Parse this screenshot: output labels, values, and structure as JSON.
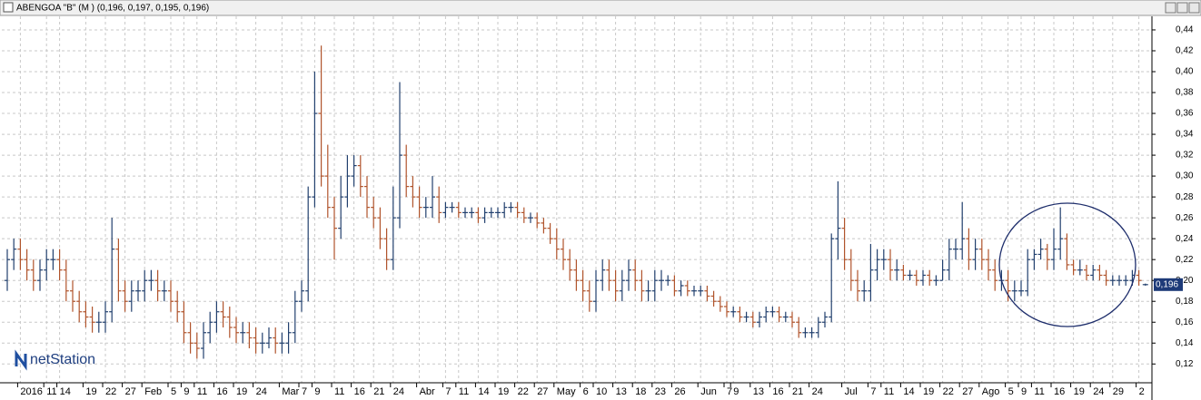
{
  "logo": "netStation",
  "chart_data": {
    "type": "ohlc",
    "title": "ABENGOA \"B\" (M ) (0,196, 0,197, 0,195, 0,196)",
    "categories": [
      null,
      null,
      "2016",
      null,
      null,
      null,
      "11",
      null,
      "14",
      null,
      null,
      null,
      "19",
      null,
      null,
      "22",
      null,
      null,
      "27",
      null,
      null,
      "Feb",
      null,
      null,
      null,
      "5",
      null,
      "9",
      null,
      "11",
      null,
      null,
      "16",
      null,
      null,
      "19",
      null,
      null,
      "24",
      null,
      null,
      null,
      "Mar",
      null,
      null,
      "7",
      null,
      "9",
      null,
      null,
      "11",
      null,
      null,
      "16",
      null,
      null,
      "21",
      null,
      null,
      "24",
      null,
      null,
      null,
      "Abr",
      null,
      null,
      null,
      "7",
      null,
      "11",
      null,
      null,
      "14",
      null,
      null,
      "19",
      null,
      null,
      "22",
      null,
      null,
      "27",
      null,
      null,
      "May",
      null,
      null,
      null,
      "6",
      null,
      "10",
      null,
      null,
      "13",
      null,
      null,
      "18",
      null,
      null,
      "23",
      null,
      null,
      "26",
      null,
      null,
      null,
      "Jun",
      null,
      null,
      null,
      "7",
      "9",
      null,
      null,
      "13",
      null,
      null,
      "16",
      null,
      null,
      "21",
      null,
      null,
      "24",
      null,
      null,
      null,
      null,
      "Jul",
      null,
      null,
      null,
      "7",
      null,
      "11",
      null,
      null,
      "14",
      null,
      null,
      "19",
      null,
      null,
      "22",
      null,
      null,
      "27",
      null,
      null,
      "Ago",
      null,
      null,
      null,
      "5",
      null,
      "9",
      null,
      "11",
      null,
      null,
      "16",
      null,
      null,
      "19",
      null,
      null,
      "24",
      null,
      null,
      "29",
      null,
      null,
      null,
      "2",
      null
    ],
    "open": [
      0.2,
      0.22,
      0.23,
      0.22,
      0.21,
      0.2,
      0.21,
      0.22,
      0.22,
      0.21,
      0.19,
      0.18,
      0.17,
      0.165,
      0.16,
      0.16,
      0.17,
      0.23,
      0.19,
      0.18,
      0.19,
      0.19,
      0.2,
      0.2,
      0.19,
      0.19,
      0.18,
      0.17,
      0.15,
      0.14,
      0.135,
      0.15,
      0.16,
      0.17,
      0.165,
      0.155,
      0.15,
      0.15,
      0.145,
      0.14,
      0.14,
      0.145,
      0.14,
      0.14,
      0.15,
      0.18,
      0.19,
      0.28,
      0.36,
      0.3,
      0.27,
      0.25,
      0.28,
      0.3,
      0.31,
      0.29,
      0.27,
      0.26,
      0.24,
      0.22,
      0.26,
      0.32,
      0.29,
      0.28,
      0.27,
      0.27,
      0.28,
      0.265,
      0.27,
      0.27,
      0.265,
      0.265,
      0.265,
      0.26,
      0.265,
      0.265,
      0.265,
      0.27,
      0.27,
      0.265,
      0.26,
      0.26,
      0.255,
      0.25,
      0.24,
      0.23,
      0.22,
      0.21,
      0.2,
      0.19,
      0.18,
      0.2,
      0.21,
      0.2,
      0.19,
      0.2,
      0.21,
      0.2,
      0.19,
      0.19,
      0.2,
      0.2,
      0.2,
      0.19,
      0.195,
      0.19,
      0.19,
      0.19,
      0.185,
      0.18,
      0.175,
      0.17,
      0.17,
      0.165,
      0.165,
      0.16,
      0.165,
      0.17,
      0.17,
      0.165,
      0.165,
      0.16,
      0.15,
      0.15,
      0.15,
      0.16,
      0.165,
      0.24,
      0.25,
      0.22,
      0.2,
      0.19,
      0.19,
      0.21,
      0.22,
      0.22,
      0.21,
      0.21,
      0.205,
      0.205,
      0.2,
      0.205,
      0.2,
      0.2,
      0.21,
      0.23,
      0.23,
      0.24,
      0.22,
      0.23,
      0.22,
      0.21,
      0.2,
      0.2,
      0.19,
      0.19,
      0.19,
      0.22,
      0.225,
      0.23,
      0.22,
      0.23,
      0.24,
      0.215,
      0.21,
      0.21,
      0.205,
      0.21,
      0.205,
      0.2,
      0.2,
      0.2,
      0.2,
      0.205,
      0.196
    ],
    "high": [
      0.23,
      0.24,
      0.24,
      0.23,
      0.22,
      0.22,
      0.23,
      0.23,
      0.23,
      0.22,
      0.2,
      0.19,
      0.18,
      0.175,
      0.17,
      0.18,
      0.26,
      0.24,
      0.2,
      0.2,
      0.2,
      0.21,
      0.21,
      0.21,
      0.2,
      0.2,
      0.19,
      0.18,
      0.16,
      0.15,
      0.16,
      0.17,
      0.18,
      0.18,
      0.175,
      0.165,
      0.16,
      0.16,
      0.155,
      0.15,
      0.155,
      0.155,
      0.15,
      0.16,
      0.19,
      0.2,
      0.29,
      0.4,
      0.425,
      0.33,
      0.28,
      0.3,
      0.32,
      0.32,
      0.32,
      0.3,
      0.28,
      0.27,
      0.25,
      0.29,
      0.39,
      0.33,
      0.3,
      0.29,
      0.28,
      0.3,
      0.29,
      0.275,
      0.275,
      0.275,
      0.27,
      0.27,
      0.27,
      0.27,
      0.27,
      0.27,
      0.275,
      0.275,
      0.275,
      0.27,
      0.265,
      0.265,
      0.26,
      0.255,
      0.25,
      0.24,
      0.23,
      0.22,
      0.21,
      0.2,
      0.21,
      0.22,
      0.22,
      0.21,
      0.21,
      0.22,
      0.22,
      0.21,
      0.2,
      0.21,
      0.21,
      0.205,
      0.205,
      0.2,
      0.2,
      0.195,
      0.195,
      0.195,
      0.19,
      0.185,
      0.18,
      0.175,
      0.175,
      0.17,
      0.17,
      0.17,
      0.175,
      0.175,
      0.175,
      0.17,
      0.17,
      0.165,
      0.155,
      0.155,
      0.165,
      0.17,
      0.245,
      0.295,
      0.26,
      0.23,
      0.21,
      0.2,
      0.235,
      0.23,
      0.23,
      0.23,
      0.22,
      0.215,
      0.21,
      0.21,
      0.21,
      0.21,
      0.205,
      0.22,
      0.24,
      0.24,
      0.275,
      0.25,
      0.24,
      0.24,
      0.23,
      0.22,
      0.21,
      0.21,
      0.2,
      0.2,
      0.23,
      0.23,
      0.24,
      0.235,
      0.25,
      0.27,
      0.245,
      0.22,
      0.22,
      0.215,
      0.215,
      0.215,
      0.21,
      0.205,
      0.205,
      0.205,
      0.21,
      0.21,
      0.197
    ],
    "low": [
      0.19,
      0.21,
      0.21,
      0.2,
      0.19,
      0.19,
      0.2,
      0.21,
      0.2,
      0.18,
      0.17,
      0.16,
      0.155,
      0.15,
      0.15,
      0.15,
      0.16,
      0.18,
      0.17,
      0.17,
      0.18,
      0.18,
      0.19,
      0.18,
      0.18,
      0.17,
      0.16,
      0.14,
      0.13,
      0.125,
      0.125,
      0.14,
      0.15,
      0.155,
      0.145,
      0.14,
      0.14,
      0.135,
      0.13,
      0.13,
      0.135,
      0.13,
      0.13,
      0.13,
      0.14,
      0.17,
      0.18,
      0.27,
      0.29,
      0.26,
      0.22,
      0.24,
      0.27,
      0.29,
      0.28,
      0.26,
      0.25,
      0.23,
      0.21,
      0.21,
      0.25,
      0.28,
      0.27,
      0.26,
      0.26,
      0.26,
      0.255,
      0.26,
      0.265,
      0.26,
      0.26,
      0.26,
      0.255,
      0.255,
      0.26,
      0.26,
      0.26,
      0.265,
      0.26,
      0.255,
      0.255,
      0.25,
      0.245,
      0.235,
      0.22,
      0.21,
      0.2,
      0.19,
      0.18,
      0.17,
      0.17,
      0.19,
      0.19,
      0.18,
      0.18,
      0.19,
      0.19,
      0.18,
      0.18,
      0.18,
      0.19,
      0.195,
      0.185,
      0.185,
      0.185,
      0.185,
      0.185,
      0.18,
      0.175,
      0.17,
      0.165,
      0.165,
      0.16,
      0.16,
      0.155,
      0.155,
      0.16,
      0.165,
      0.16,
      0.16,
      0.155,
      0.145,
      0.145,
      0.145,
      0.145,
      0.155,
      0.16,
      0.22,
      0.21,
      0.19,
      0.18,
      0.18,
      0.18,
      0.2,
      0.21,
      0.2,
      0.2,
      0.2,
      0.2,
      0.195,
      0.195,
      0.195,
      0.195,
      0.2,
      0.2,
      0.22,
      0.22,
      0.21,
      0.21,
      0.21,
      0.2,
      0.19,
      0.19,
      0.18,
      0.18,
      0.185,
      0.185,
      0.21,
      0.22,
      0.21,
      0.21,
      0.22,
      0.21,
      0.205,
      0.205,
      0.2,
      0.2,
      0.2,
      0.195,
      0.195,
      0.195,
      0.195,
      0.195,
      0.195,
      0.195
    ],
    "close": [
      0.22,
      0.23,
      0.22,
      0.21,
      0.2,
      0.21,
      0.22,
      0.22,
      0.21,
      0.19,
      0.18,
      0.17,
      0.165,
      0.16,
      0.16,
      0.17,
      0.23,
      0.19,
      0.18,
      0.19,
      0.19,
      0.2,
      0.2,
      0.19,
      0.19,
      0.18,
      0.17,
      0.15,
      0.14,
      0.135,
      0.15,
      0.16,
      0.17,
      0.165,
      0.155,
      0.15,
      0.15,
      0.145,
      0.14,
      0.14,
      0.145,
      0.14,
      0.14,
      0.15,
      0.18,
      0.19,
      0.28,
      0.36,
      0.3,
      0.27,
      0.25,
      0.28,
      0.3,
      0.31,
      0.29,
      0.27,
      0.26,
      0.24,
      0.22,
      0.26,
      0.32,
      0.29,
      0.28,
      0.27,
      0.27,
      0.28,
      0.265,
      0.27,
      0.27,
      0.265,
      0.265,
      0.265,
      0.26,
      0.265,
      0.265,
      0.265,
      0.27,
      0.27,
      0.265,
      0.26,
      0.26,
      0.255,
      0.25,
      0.24,
      0.23,
      0.22,
      0.21,
      0.2,
      0.19,
      0.18,
      0.2,
      0.21,
      0.2,
      0.19,
      0.2,
      0.21,
      0.2,
      0.19,
      0.19,
      0.2,
      0.2,
      0.2,
      0.19,
      0.195,
      0.19,
      0.19,
      0.19,
      0.185,
      0.18,
      0.175,
      0.17,
      0.17,
      0.165,
      0.165,
      0.16,
      0.165,
      0.17,
      0.17,
      0.165,
      0.165,
      0.16,
      0.15,
      0.15,
      0.15,
      0.16,
      0.165,
      0.24,
      0.25,
      0.22,
      0.2,
      0.19,
      0.19,
      0.21,
      0.22,
      0.22,
      0.21,
      0.21,
      0.205,
      0.205,
      0.2,
      0.205,
      0.2,
      0.2,
      0.21,
      0.23,
      0.23,
      0.24,
      0.22,
      0.23,
      0.22,
      0.21,
      0.2,
      0.2,
      0.19,
      0.19,
      0.19,
      0.22,
      0.225,
      0.23,
      0.22,
      0.23,
      0.24,
      0.215,
      0.21,
      0.21,
      0.205,
      0.21,
      0.205,
      0.2,
      0.2,
      0.2,
      0.2,
      0.205,
      0.2,
      0.196
    ],
    "up_color": "#22406e",
    "down_color": "#b0542c",
    "ylim": [
      0.102,
      0.453
    ],
    "yticks": [
      {
        "value": 0.12,
        "label": "0,12"
      },
      {
        "value": 0.14,
        "label": "0,14"
      },
      {
        "value": 0.16,
        "label": "0,16"
      },
      {
        "value": 0.18,
        "label": "0,18"
      },
      {
        "value": 0.2,
        "label": "0,20"
      },
      {
        "value": 0.22,
        "label": "0,22"
      },
      {
        "value": 0.24,
        "label": "0,24"
      },
      {
        "value": 0.26,
        "label": "0,26"
      },
      {
        "value": 0.28,
        "label": "0,28"
      },
      {
        "value": 0.3,
        "label": "0,30"
      },
      {
        "value": 0.32,
        "label": "0,32"
      },
      {
        "value": 0.34,
        "label": "0,34"
      },
      {
        "value": 0.36,
        "label": "0,36"
      },
      {
        "value": 0.38,
        "label": "0,38"
      },
      {
        "value": 0.4,
        "label": "0,40"
      },
      {
        "value": 0.42,
        "label": "0,42"
      },
      {
        "value": 0.44,
        "label": "0,44"
      }
    ],
    "last_price": {
      "value": 0.196,
      "label": "0,196"
    },
    "grid": true
  }
}
